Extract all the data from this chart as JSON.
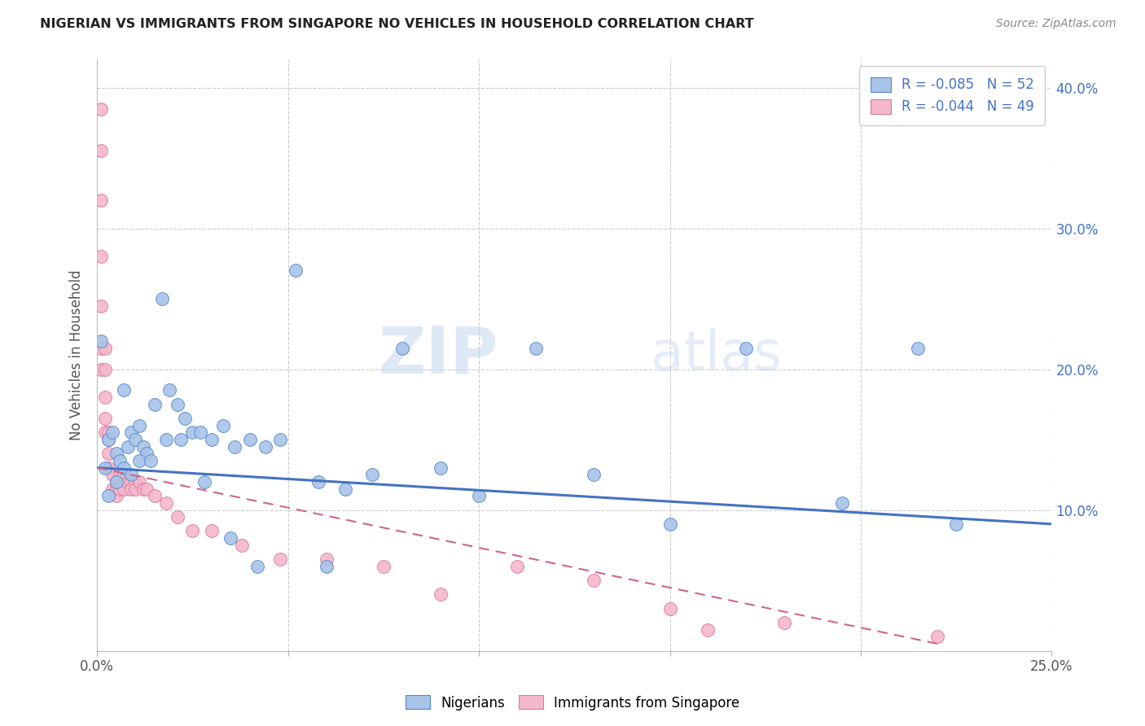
{
  "title": "NIGERIAN VS IMMIGRANTS FROM SINGAPORE NO VEHICLES IN HOUSEHOLD CORRELATION CHART",
  "source": "Source: ZipAtlas.com",
  "ylabel": "No Vehicles in Household",
  "xlim": [
    0.0,
    0.25
  ],
  "ylim": [
    0.0,
    0.42
  ],
  "xtick_positions": [
    0.0,
    0.05,
    0.1,
    0.15,
    0.2,
    0.25
  ],
  "xticklabels": [
    "0.0%",
    "",
    "",
    "",
    "",
    "25.0%"
  ],
  "ytick_positions": [
    0.0,
    0.1,
    0.2,
    0.3,
    0.4
  ],
  "yticklabels_right": [
    "",
    "10.0%",
    "20.0%",
    "30.0%",
    "40.0%"
  ],
  "blue_label": "Nigerians",
  "pink_label": "Immigrants from Singapore",
  "blue_R": "R = -0.085",
  "blue_N": "N = 52",
  "pink_R": "R = -0.044",
  "pink_N": "N = 49",
  "blue_fill": "#a8c4e8",
  "pink_fill": "#f4b8cc",
  "blue_edge": "#5588cc",
  "pink_edge": "#dd7799",
  "blue_line": "#4472c4",
  "pink_line": "#cc6688",
  "legend_color": "#4472c4",
  "watermark_text": "ZIPatlas",
  "blue_x": [
    0.001,
    0.002,
    0.003,
    0.004,
    0.005,
    0.006,
    0.007,
    0.008,
    0.009,
    0.01,
    0.011,
    0.012,
    0.013,
    0.015,
    0.017,
    0.019,
    0.021,
    0.023,
    0.025,
    0.027,
    0.03,
    0.033,
    0.036,
    0.04,
    0.044,
    0.048,
    0.052,
    0.058,
    0.065,
    0.072,
    0.08,
    0.09,
    0.1,
    0.115,
    0.13,
    0.15,
    0.17,
    0.195,
    0.215,
    0.225,
    0.003,
    0.005,
    0.007,
    0.009,
    0.011,
    0.014,
    0.018,
    0.022,
    0.028,
    0.035,
    0.042,
    0.06
  ],
  "blue_y": [
    0.22,
    0.13,
    0.15,
    0.155,
    0.14,
    0.135,
    0.185,
    0.145,
    0.155,
    0.15,
    0.16,
    0.145,
    0.14,
    0.175,
    0.25,
    0.185,
    0.175,
    0.165,
    0.155,
    0.155,
    0.15,
    0.16,
    0.145,
    0.15,
    0.145,
    0.15,
    0.27,
    0.12,
    0.115,
    0.125,
    0.215,
    0.13,
    0.11,
    0.215,
    0.125,
    0.09,
    0.215,
    0.105,
    0.215,
    0.09,
    0.11,
    0.12,
    0.13,
    0.125,
    0.135,
    0.135,
    0.15,
    0.15,
    0.12,
    0.08,
    0.06,
    0.06
  ],
  "pink_x": [
    0.001,
    0.001,
    0.001,
    0.001,
    0.001,
    0.001,
    0.001,
    0.002,
    0.002,
    0.002,
    0.002,
    0.002,
    0.003,
    0.003,
    0.003,
    0.003,
    0.004,
    0.004,
    0.005,
    0.005,
    0.005,
    0.006,
    0.006,
    0.007,
    0.007,
    0.008,
    0.009,
    0.009,
    0.01,
    0.01,
    0.011,
    0.012,
    0.013,
    0.015,
    0.018,
    0.021,
    0.025,
    0.03,
    0.038,
    0.048,
    0.06,
    0.075,
    0.09,
    0.11,
    0.13,
    0.15,
    0.16,
    0.18,
    0.22
  ],
  "pink_y": [
    0.385,
    0.355,
    0.32,
    0.28,
    0.245,
    0.215,
    0.2,
    0.215,
    0.2,
    0.18,
    0.165,
    0.155,
    0.155,
    0.15,
    0.14,
    0.13,
    0.125,
    0.115,
    0.12,
    0.115,
    0.11,
    0.125,
    0.115,
    0.125,
    0.115,
    0.12,
    0.12,
    0.115,
    0.12,
    0.115,
    0.12,
    0.115,
    0.115,
    0.11,
    0.105,
    0.095,
    0.085,
    0.085,
    0.075,
    0.065,
    0.065,
    0.06,
    0.04,
    0.06,
    0.05,
    0.03,
    0.015,
    0.02,
    0.01
  ]
}
